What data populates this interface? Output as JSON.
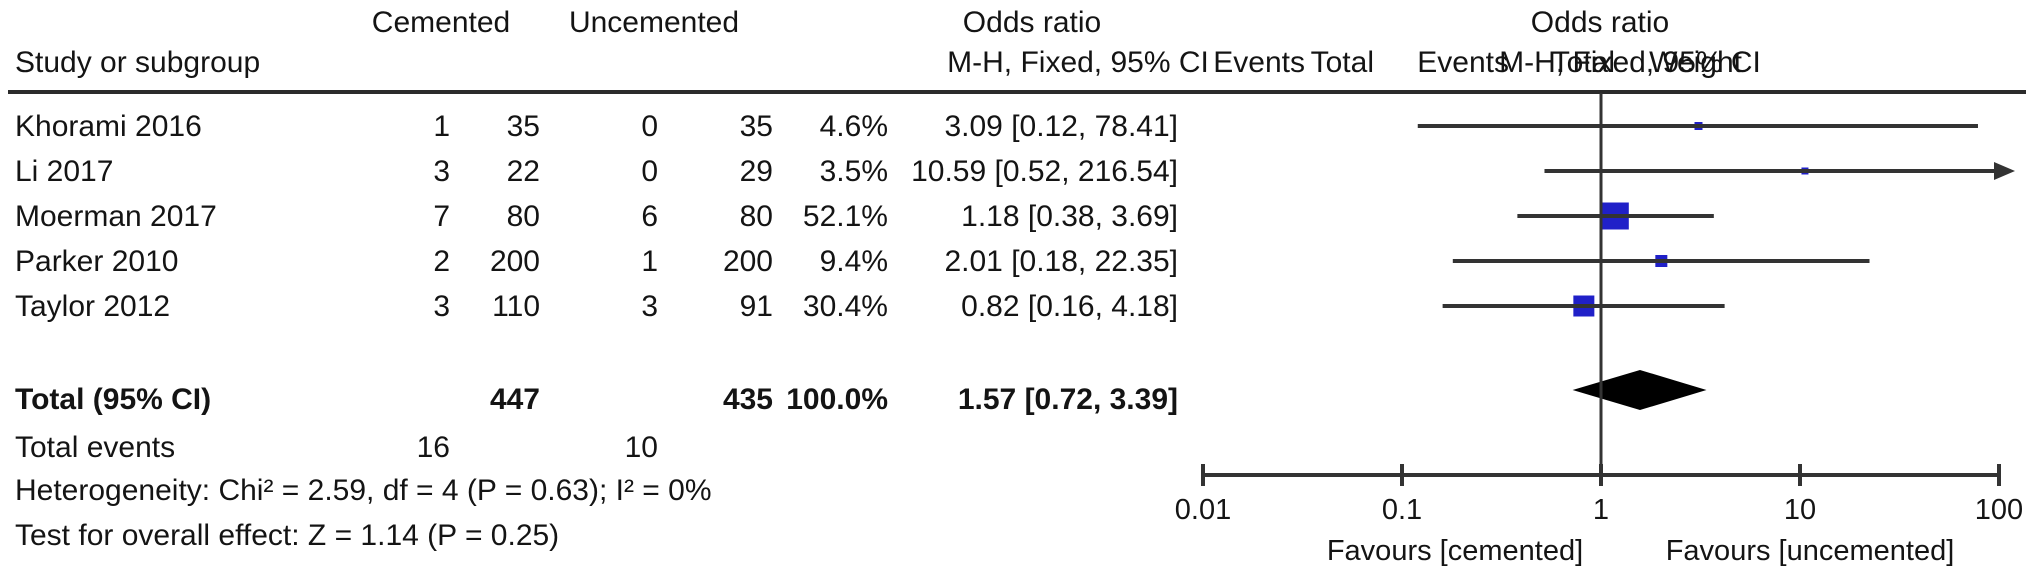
{
  "table": {
    "header": {
      "group1": "Cemented",
      "group2": "Uncemented",
      "col_study": "Study or subgroup",
      "col_events1": "Events",
      "col_total1": "Total",
      "col_events2": "Events",
      "col_total2": "Total",
      "col_weight": "Weight",
      "or_title": "Odds ratio",
      "or_subtitle": "M-H, Fixed, 95% CI",
      "plot_title": "Odds ratio",
      "plot_subtitle": "M-H, Fixed, 95% CI"
    },
    "rows": [
      {
        "study": "Khorami 2016",
        "events1": "1",
        "total1": "35",
        "events2": "0",
        "total2": "35",
        "weight": "4.6%",
        "or_ci": "3.09 [0.12, 78.41]"
      },
      {
        "study": "Li 2017",
        "events1": "3",
        "total1": "22",
        "events2": "0",
        "total2": "29",
        "weight": "3.5%",
        "or_ci": "10.59 [0.52, 216.54]"
      },
      {
        "study": "Moerman 2017",
        "events1": "7",
        "total1": "80",
        "events2": "6",
        "total2": "80",
        "weight": "52.1%",
        "or_ci": "1.18 [0.38, 3.69]"
      },
      {
        "study": "Parker 2010",
        "events1": "2",
        "total1": "200",
        "events2": "1",
        "total2": "200",
        "weight": "9.4%",
        "or_ci": "2.01 [0.18, 22.35]"
      },
      {
        "study": "Taylor 2012",
        "events1": "3",
        "total1": "110",
        "events2": "3",
        "total2": "91",
        "weight": "30.4%",
        "or_ci": "0.82 [0.16, 4.18]"
      }
    ],
    "total_row": {
      "label": "Total (95% CI)",
      "total1": "447",
      "total2": "435",
      "weight": "100.0%",
      "or_ci": "1.57 [0.72, 3.39]"
    },
    "total_events": {
      "label": "Total events",
      "events1": "16",
      "events2": "10"
    },
    "heterogeneity": "Heterogeneity: Chi² = 2.59, df = 4 (P = 0.63); I² = 0%",
    "overall_effect": "Test for overall effect: Z = 1.14 (P = 0.25)"
  },
  "chart_data": {
    "type": "forest",
    "x_scale": "log10",
    "xlim": [
      0.01,
      100
    ],
    "null_line": 1,
    "axis_ticks": [
      {
        "value": 0.01,
        "label": "0.01"
      },
      {
        "value": 0.1,
        "label": "0.1"
      },
      {
        "value": 1,
        "label": "1"
      },
      {
        "value": 10,
        "label": "10"
      },
      {
        "value": 100,
        "label": "100"
      }
    ],
    "studies": [
      {
        "name": "Khorami 2016",
        "or": 3.09,
        "ci_low": 0.12,
        "ci_high": 78.41,
        "weight_pct": 4.6
      },
      {
        "name": "Li 2017",
        "or": 10.59,
        "ci_low": 0.52,
        "ci_high": 216.54,
        "weight_pct": 3.5
      },
      {
        "name": "Moerman 2017",
        "or": 1.18,
        "ci_low": 0.38,
        "ci_high": 3.69,
        "weight_pct": 52.1
      },
      {
        "name": "Parker 2010",
        "or": 2.01,
        "ci_low": 0.18,
        "ci_high": 22.35,
        "weight_pct": 9.4
      },
      {
        "name": "Taylor 2012",
        "or": 0.82,
        "ci_low": 0.16,
        "ci_high": 4.18,
        "weight_pct": 30.4
      }
    ],
    "total": {
      "or": 1.57,
      "ci_low": 0.72,
      "ci_high": 3.39
    },
    "favours_left": "Favours [cemented]",
    "favours_right": "Favours [uncemented]",
    "marker_color": "#2020c8",
    "diamond_color": "#000000",
    "line_color": "#333333"
  }
}
